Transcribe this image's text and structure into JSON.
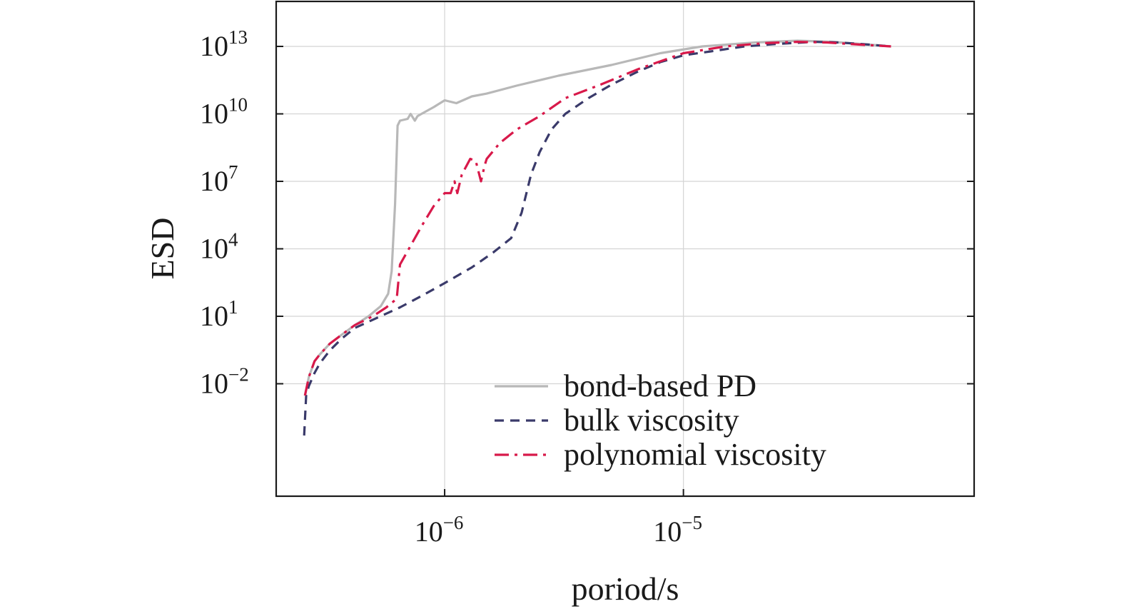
{
  "chart_data": {
    "type": "line",
    "title": "",
    "xlabel": "poriod/s",
    "ylabel": "ESD",
    "x_scale": "log",
    "y_scale": "log",
    "xlim": [
      1.97e-07,
      0.000165
    ],
    "ylim": [
      1e-07,
      1000000000000000.0
    ],
    "grid": true,
    "legend_position": "bottom-right",
    "x_ticks": [
      {
        "value": 1e-06,
        "base": "10",
        "exp": "−6"
      },
      {
        "value": 1e-05,
        "base": "10",
        "exp": "−5"
      }
    ],
    "y_ticks": [
      {
        "value": 0.01,
        "base": "10",
        "exp": "−2"
      },
      {
        "value": 10.0,
        "base": "10",
        "exp": "1"
      },
      {
        "value": 10000.0,
        "base": "10",
        "exp": "4"
      },
      {
        "value": 10000000.0,
        "base": "10",
        "exp": "7"
      },
      {
        "value": 10000000000.0,
        "base": "10",
        "exp": "10"
      },
      {
        "value": 10000000000000.0,
        "base": "10",
        "exp": "13"
      }
    ],
    "series": [
      {
        "name": "bond-based PD",
        "color": "#b8b8b8",
        "dash": "",
        "x": [
          2.6e-07,
          2.7e-07,
          2.85e-07,
          3e-07,
          3.3e-07,
          3.7e-07,
          4.2e-07,
          4.8e-07,
          5.4e-07,
          5.8e-07,
          6e-07,
          6.2e-07,
          6.35e-07,
          6.5e-07,
          7e-07,
          7.2e-07,
          7.5e-07,
          7.7e-07,
          8e-07,
          9e-07,
          1e-06,
          1.12e-06,
          1.3e-06,
          1.5e-06,
          2e-06,
          3e-06,
          5e-06,
          8e-06,
          1.2e-05,
          2e-05,
          3e-05,
          4.2e-05,
          6e-05,
          7.4e-05
        ],
        "y": [
          0.003,
          0.02,
          0.1,
          0.2,
          0.6,
          1.5,
          4,
          10,
          28,
          100,
          1000,
          1000000.0,
          3000000000.0,
          5000000000.0,
          6000000000.0,
          10000000000.0,
          5000000000.0,
          8000000000.0,
          10000000000.0,
          20000000000.0,
          40000000000.0,
          30000000000.0,
          60000000000.0,
          80000000000.0,
          180000000000.0,
          500000000000.0,
          1500000000000.0,
          5000000000000.0,
          10000000000000.0,
          15000000000000.0,
          18000000000000.0,
          16000000000000.0,
          12000000000000.0,
          10000000000000.0
        ]
      },
      {
        "name": "bulk viscosity",
        "color": "#3a3a6a",
        "dash": "13 9",
        "x": [
          2.58e-07,
          2.63e-07,
          2.7e-07,
          2.85e-07,
          3e-07,
          3.3e-07,
          3.7e-07,
          4.2e-07,
          5e-07,
          6.5e-07,
          8e-07,
          1e-06,
          1.3e-06,
          1.6e-06,
          1.9e-06,
          2.1e-06,
          2.3e-06,
          2.5e-06,
          2.8e-06,
          3.2e-06,
          4e-06,
          5e-06,
          6.5e-06,
          8e-06,
          1e-05,
          1.3e-05,
          1.8e-05,
          2.5e-05,
          3.5e-05,
          4.5e-05,
          6e-05,
          7.4e-05
        ],
        "y": [
          5e-05,
          0.003,
          0.008,
          0.03,
          0.08,
          0.3,
          1,
          3,
          7,
          25,
          80,
          300,
          1500,
          7000,
          30000.0,
          400000.0,
          20000000.0,
          200000000.0,
          2000000000.0,
          10000000000.0,
          50000000000.0,
          200000000000.0,
          800000000000.0,
          2000000000000.0,
          4000000000000.0,
          6000000000000.0,
          10000000000000.0,
          13000000000000.0,
          16000000000000.0,
          15000000000000.0,
          12000000000000.0,
          10000000000000.0
        ]
      },
      {
        "name": "polynomial viscosity",
        "color": "#d8194a",
        "dash": "20 8 4 8",
        "x": [
          2.6e-07,
          2.7e-07,
          2.85e-07,
          3e-07,
          3.3e-07,
          3.7e-07,
          4.2e-07,
          5e-07,
          5.7e-07,
          6.3e-07,
          6.5e-07,
          7e-07,
          8e-07,
          9e-07,
          1e-06,
          1.06e-06,
          1.1e-06,
          1.13e-06,
          1.18e-06,
          1.28e-06,
          1.35e-06,
          1.42e-06,
          1.47e-06,
          1.5e-06,
          1.7e-06,
          2e-06,
          2.5e-06,
          3.2e-06,
          4.5e-06,
          6.5e-06,
          1e-05,
          1.5e-05,
          2.2e-05,
          3e-05,
          4e-05,
          5.5e-05,
          7.4e-05
        ],
        "y": [
          0.003,
          0.02,
          0.1,
          0.2,
          0.6,
          1.5,
          4,
          10,
          25,
          60,
          2000,
          8000,
          100000.0,
          800000.0,
          3000000.0,
          3000000.0,
          10000000.0,
          3000000.0,
          20000000.0,
          100000000.0,
          80000000.0,
          10000000.0,
          50000000.0,
          100000000.0,
          500000000.0,
          2000000000.0,
          8000000000.0,
          50000000000.0,
          200000000000.0,
          1000000000000.0,
          5000000000000.0,
          10000000000000.0,
          14000000000000.0,
          16000000000000.0,
          15000000000000.0,
          12000000000000.0,
          10000000000000.0
        ]
      }
    ]
  }
}
